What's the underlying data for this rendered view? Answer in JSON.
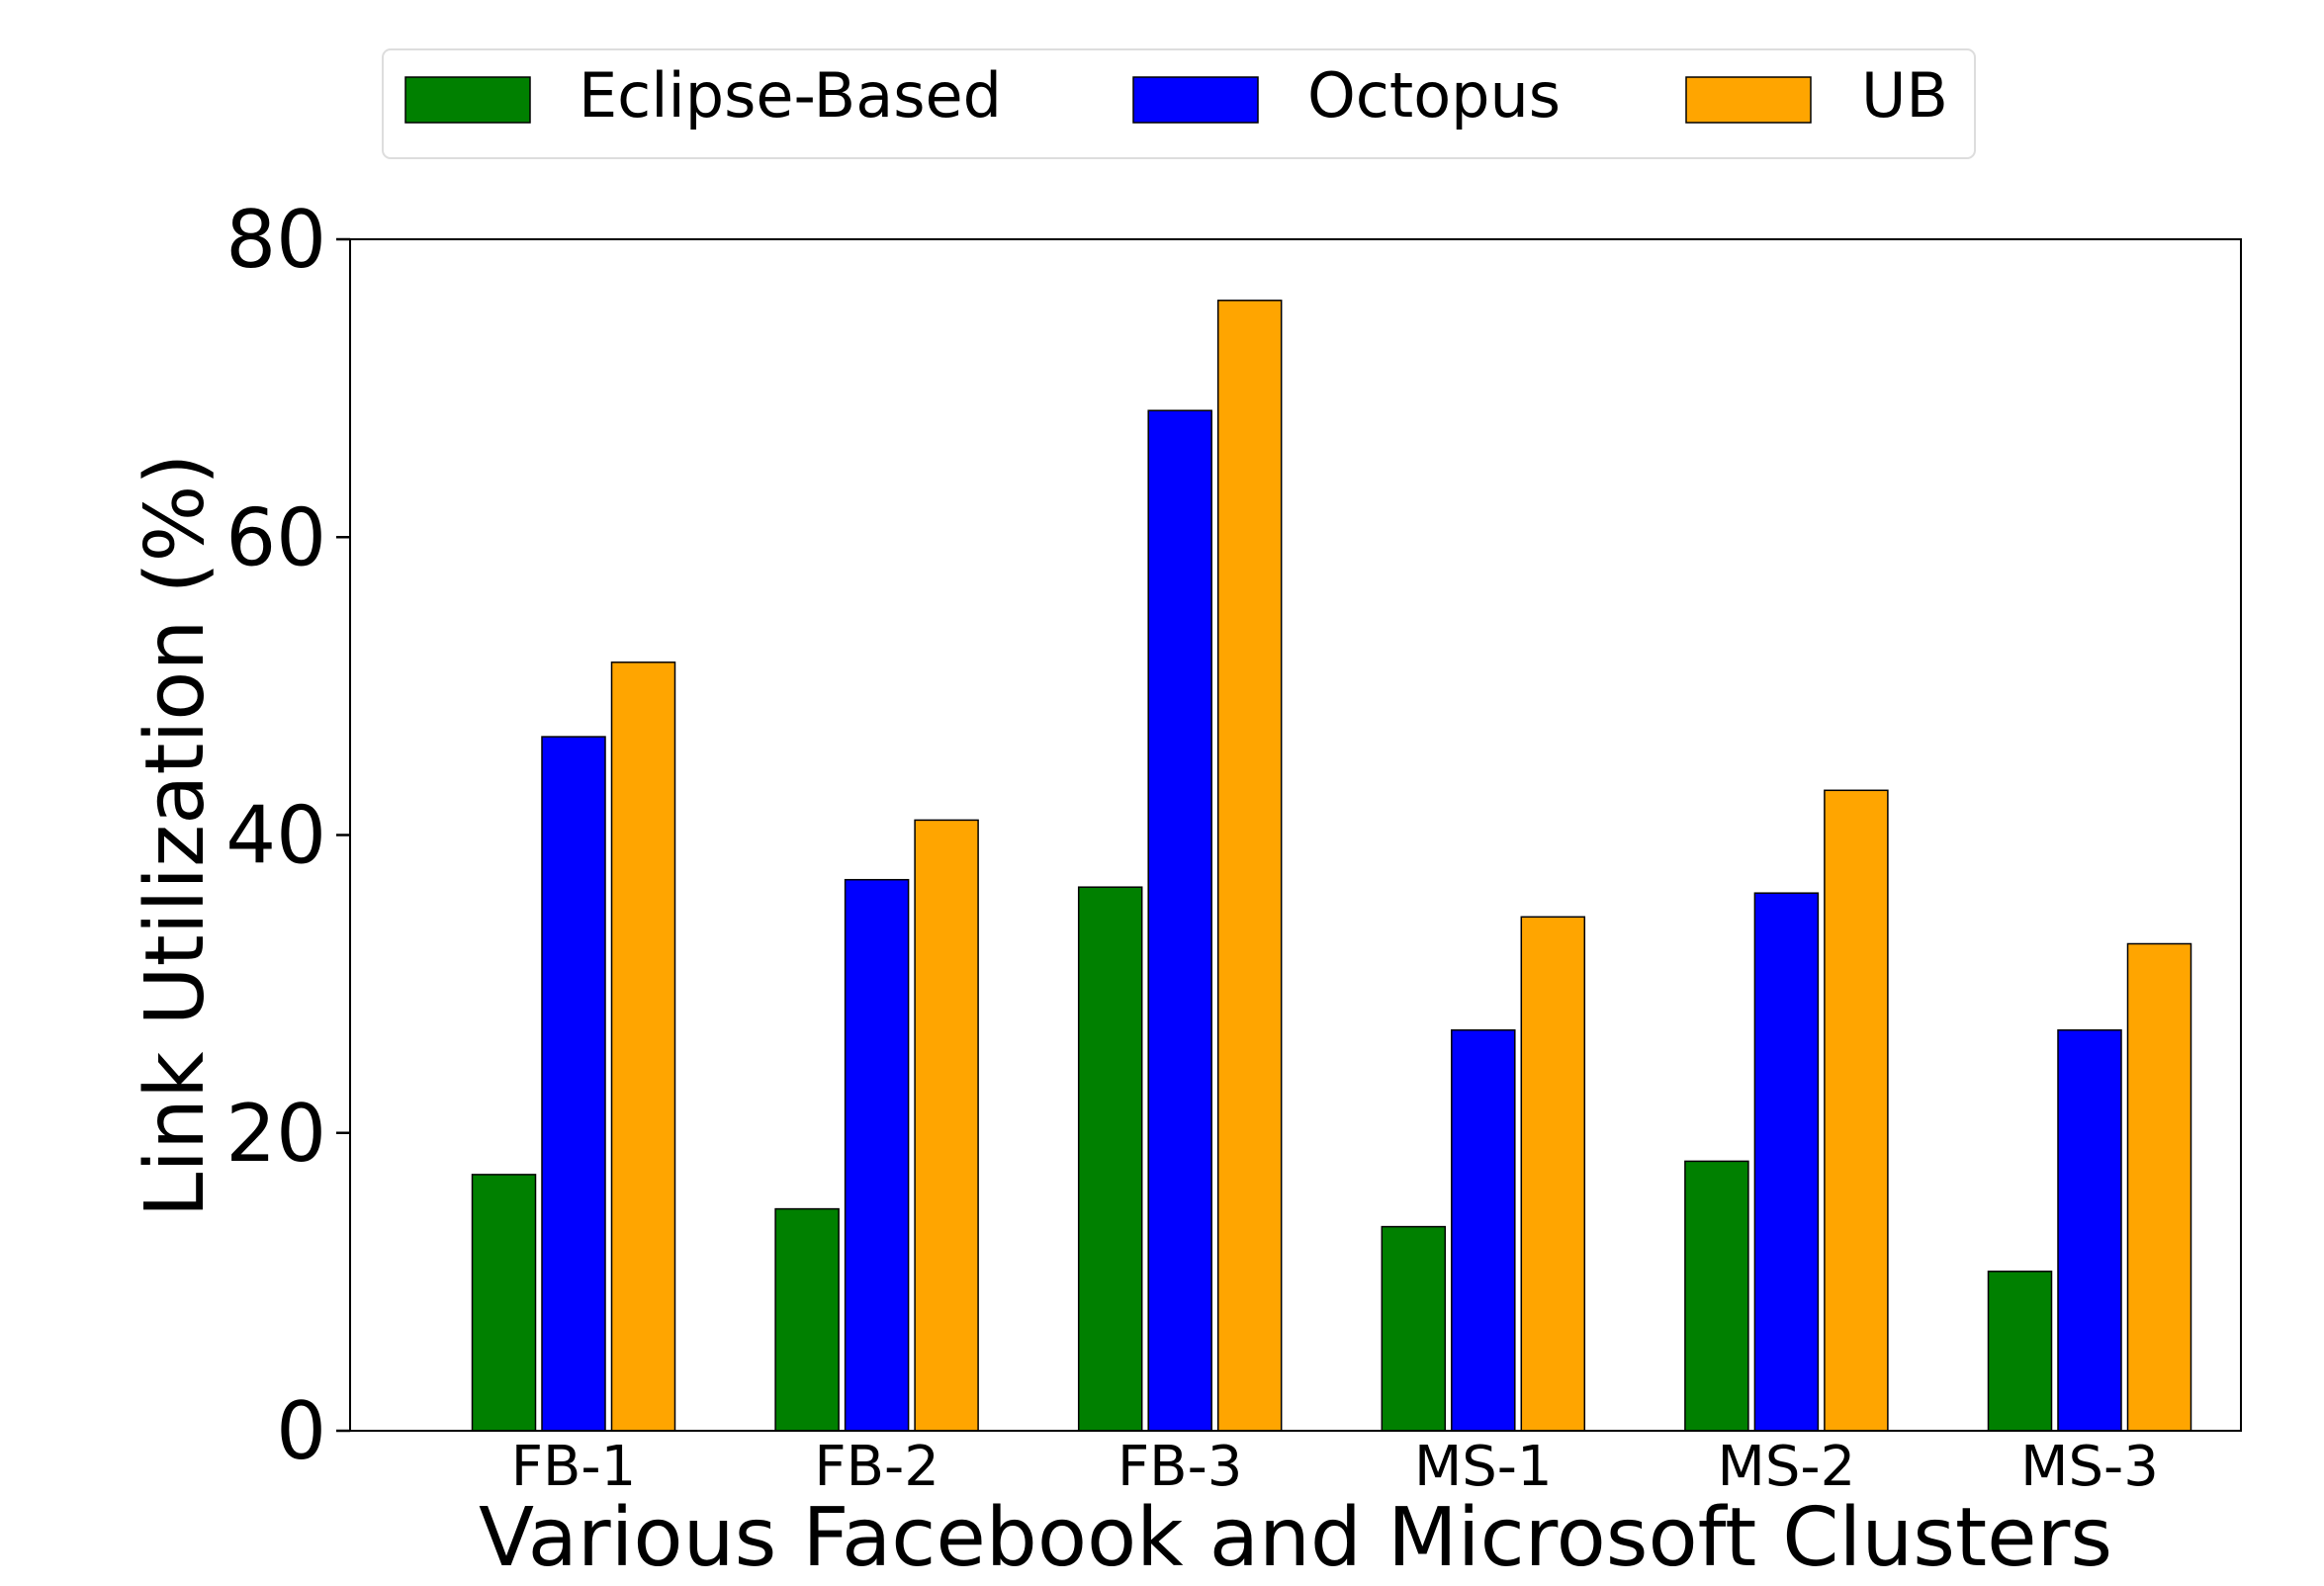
{
  "chart_data": {
    "type": "bar",
    "title": "",
    "xlabel": "Various Facebook and Microsoft Clusters",
    "ylabel": "Link Utilization (%)",
    "categories": [
      "FB-1",
      "FB-2",
      "FB-3",
      "MS-1",
      "MS-2",
      "MS-3"
    ],
    "series": [
      {
        "name": "Eclipse-Based",
        "color": "#008000",
        "values": [
          17.2,
          14.9,
          36.5,
          13.7,
          18.1,
          10.7
        ]
      },
      {
        "name": "Octopus",
        "color": "#0000ff",
        "values": [
          46.6,
          37.0,
          68.5,
          26.9,
          36.1,
          26.9
        ]
      },
      {
        "name": "UB",
        "color": "#ffa500",
        "values": [
          51.6,
          41.0,
          75.9,
          34.5,
          43.0,
          32.7
        ]
      }
    ],
    "ylim": [
      0,
      80
    ],
    "yticks": [
      0,
      20,
      40,
      60,
      80
    ],
    "grid": false,
    "legend_position": "top-center"
  }
}
